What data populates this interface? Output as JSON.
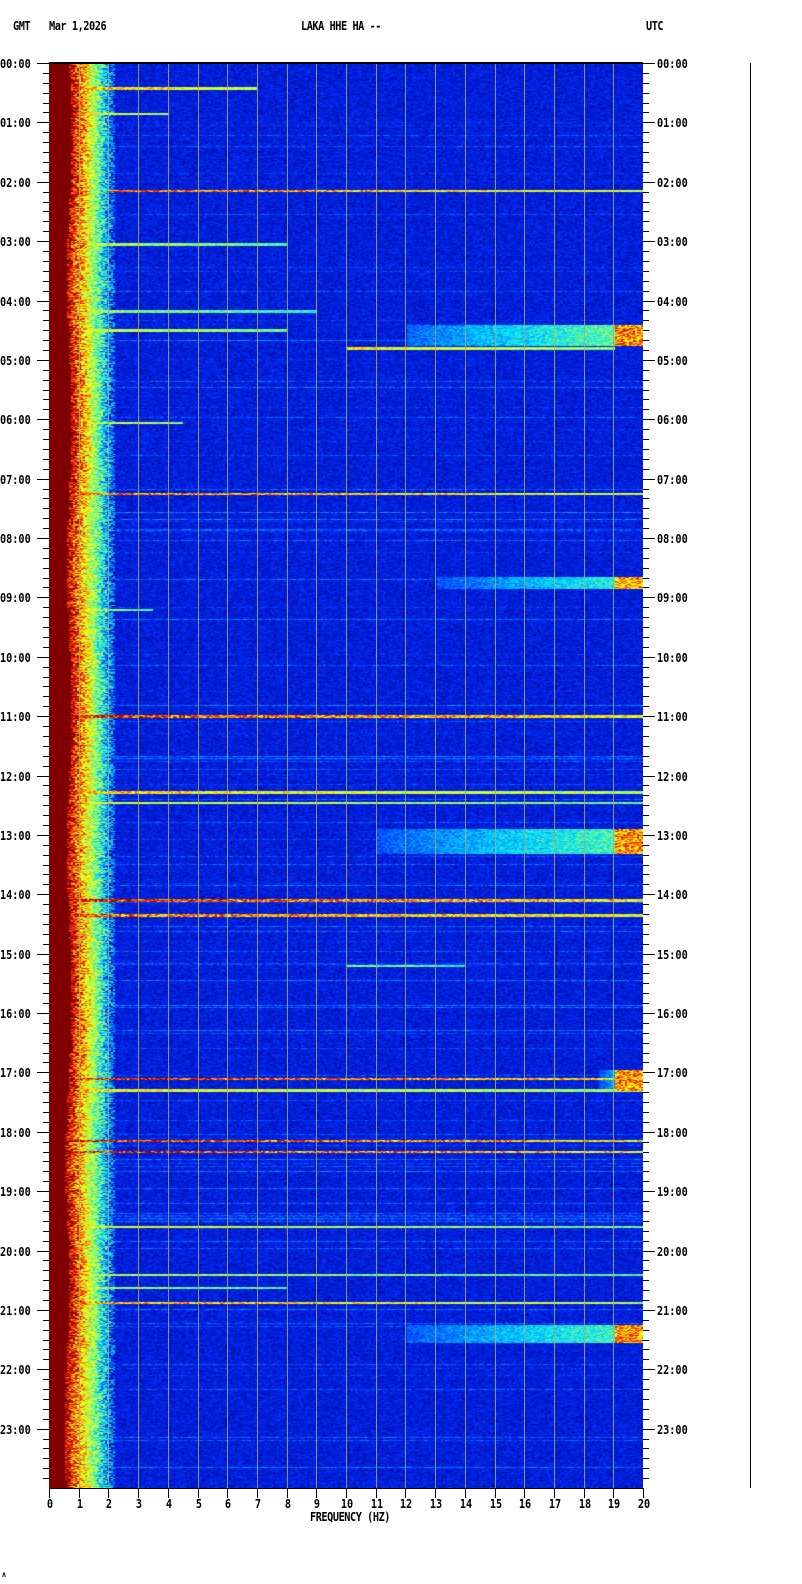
{
  "header": {
    "left_zone": "GMT",
    "date": "Mar 1,2026",
    "station": "LAKA HHE HA --",
    "right_zone": "UTC"
  },
  "footer_mark": "ʌ",
  "chart_data": {
    "type": "heatmap",
    "title": "LAKA HHE HA --",
    "xlabel": "FREQUENCY (HZ)",
    "ylabel": "",
    "xlim": [
      0,
      20
    ],
    "ylim": [
      "00:00",
      "24:00"
    ],
    "xticks": [
      "0",
      "1",
      "2",
      "3",
      "4",
      "5",
      "6",
      "7",
      "8",
      "9",
      "10",
      "11",
      "12",
      "13",
      "14",
      "15",
      "16",
      "17",
      "18",
      "19",
      "20"
    ],
    "yticks": [
      "00:00",
      "01:00",
      "02:00",
      "03:00",
      "04:00",
      "05:00",
      "06:00",
      "07:00",
      "08:00",
      "09:00",
      "10:00",
      "11:00",
      "12:00",
      "13:00",
      "14:00",
      "15:00",
      "16:00",
      "17:00",
      "18:00",
      "19:00",
      "20:00",
      "21:00",
      "22:00",
      "23:00"
    ],
    "grid": "vertical lines at each Hz",
    "colormap": [
      "#00008c",
      "#0030ff",
      "#00e0ff",
      "#a0ff60",
      "#ffff00",
      "#ff2000",
      "#800000"
    ],
    "background_level": "low (dark blue) above 2 Hz; saturated (dark red) below ~0.7 Hz",
    "events": [
      {
        "time_h": 0.42,
        "f_min": 0.5,
        "f_max": 7,
        "level": 0.8
      },
      {
        "time_h": 0.85,
        "f_min": 0.5,
        "f_max": 4,
        "level": 0.75
      },
      {
        "time_h": 2.15,
        "f_min": 2,
        "f_max": 20,
        "level": 0.85
      },
      {
        "time_h": 3.05,
        "f_min": 0.5,
        "f_max": 8,
        "level": 0.6
      },
      {
        "time_h": 4.18,
        "f_min": 0.5,
        "f_max": 9,
        "level": 0.55
      },
      {
        "time_h": 4.5,
        "f_min": 0.5,
        "f_max": 8,
        "level": 0.65
      },
      {
        "time_h": 4.8,
        "f_min": 10,
        "f_max": 19,
        "level": 0.7
      },
      {
        "time_h": 6.05,
        "f_min": 0.5,
        "f_max": 4.5,
        "level": 0.7
      },
      {
        "time_h": 7.25,
        "f_min": 0.5,
        "f_max": 20,
        "level": 0.85
      },
      {
        "time_h": 9.2,
        "f_min": 0.5,
        "f_max": 3.5,
        "level": 0.6
      },
      {
        "time_h": 11.0,
        "f_min": 0.5,
        "f_max": 20,
        "level": 0.92
      },
      {
        "time_h": 12.28,
        "f_min": 1,
        "f_max": 20,
        "level": 0.75
      },
      {
        "time_h": 12.45,
        "f_min": 1,
        "f_max": 20,
        "level": 0.65
      },
      {
        "time_h": 14.1,
        "f_min": 0.5,
        "f_max": 20,
        "level": 0.95
      },
      {
        "time_h": 14.35,
        "f_min": 0.5,
        "f_max": 20,
        "level": 0.88
      },
      {
        "time_h": 15.2,
        "f_min": 10,
        "f_max": 14,
        "level": 0.55
      },
      {
        "time_h": 17.1,
        "f_min": 0.5,
        "f_max": 20,
        "level": 0.95
      },
      {
        "time_h": 17.3,
        "f_min": 0.5,
        "f_max": 20,
        "level": 0.7
      },
      {
        "time_h": 18.15,
        "f_min": 0.5,
        "f_max": 20,
        "level": 0.95
      },
      {
        "time_h": 18.33,
        "f_min": 0.5,
        "f_max": 20,
        "level": 0.95
      },
      {
        "time_h": 19.6,
        "f_min": 0.5,
        "f_max": 20,
        "level": 0.65
      },
      {
        "time_h": 20.4,
        "f_min": 0.5,
        "f_max": 20,
        "level": 0.6
      },
      {
        "time_h": 20.62,
        "f_min": 0.5,
        "f_max": 8,
        "level": 0.6
      },
      {
        "time_h": 20.88,
        "f_min": 0.5,
        "f_max": 20,
        "level": 0.8
      }
    ],
    "bands": [
      {
        "t_start": 4.4,
        "t_end": 4.75,
        "f_min": 12,
        "f_max": 20,
        "level": 0.45,
        "peak_f_min": 19,
        "peak_level": 0.8
      },
      {
        "t_start": 8.65,
        "t_end": 8.85,
        "f_min": 13,
        "f_max": 20,
        "level": 0.4,
        "peak_f_min": 19,
        "peak_level": 0.75
      },
      {
        "t_start": 12.9,
        "t_end": 13.32,
        "f_min": 11,
        "f_max": 20,
        "level": 0.42,
        "peak_f_min": 19,
        "peak_level": 0.78
      },
      {
        "t_start": 16.95,
        "t_end": 17.3,
        "f_min": 18.5,
        "f_max": 20,
        "level": 0.4,
        "peak_f_min": 19,
        "peak_level": 0.78
      },
      {
        "t_start": 21.25,
        "t_end": 21.55,
        "f_min": 12,
        "f_max": 20,
        "level": 0.42,
        "peak_f_min": 19,
        "peak_level": 0.78
      }
    ]
  }
}
